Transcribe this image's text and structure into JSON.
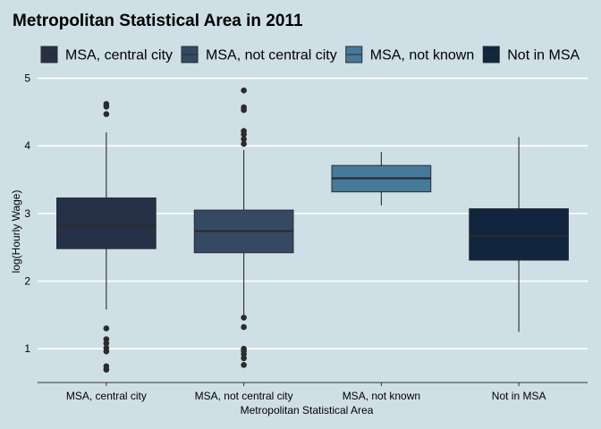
{
  "chart_data": {
    "type": "boxplot",
    "title": "Metropolitan Statistical Area in 2011",
    "xlabel": "Metropolitan Statistical Area",
    "ylabel": "log(Hourly Wage)",
    "ylim": [
      0.5,
      5.1
    ],
    "yticks": [
      1,
      2,
      3,
      4,
      5
    ],
    "grid": true,
    "legend_position": "top",
    "series": [
      {
        "name": "MSA, central city",
        "color": "#263148",
        "whisker_low": 1.58,
        "q1": 2.48,
        "median": 2.82,
        "q3": 3.23,
        "whisker_high": 4.2,
        "outliers": [
          4.62,
          4.58,
          4.47,
          1.3,
          1.14,
          1.08,
          1.01,
          0.96,
          0.74,
          0.69
        ]
      },
      {
        "name": "MSA, not central city",
        "color": "#354a62",
        "whisker_low": 1.5,
        "q1": 2.42,
        "median": 2.74,
        "q3": 3.05,
        "whisker_high": 3.94,
        "outliers": [
          4.82,
          4.57,
          4.53,
          4.22,
          4.17,
          4.1,
          4.03,
          1.46,
          1.32,
          1.0,
          0.97,
          0.92,
          0.86,
          0.76
        ]
      },
      {
        "name": "MSA, not known",
        "color": "#467a9c",
        "whisker_low": 3.12,
        "q1": 3.32,
        "median": 3.52,
        "q3": 3.71,
        "whisker_high": 3.91,
        "outliers": []
      },
      {
        "name": "Not in MSA",
        "color": "#11253f",
        "whisker_low": 1.25,
        "q1": 2.31,
        "median": 2.67,
        "q3": 3.07,
        "whisker_high": 4.13,
        "outliers": []
      }
    ]
  }
}
